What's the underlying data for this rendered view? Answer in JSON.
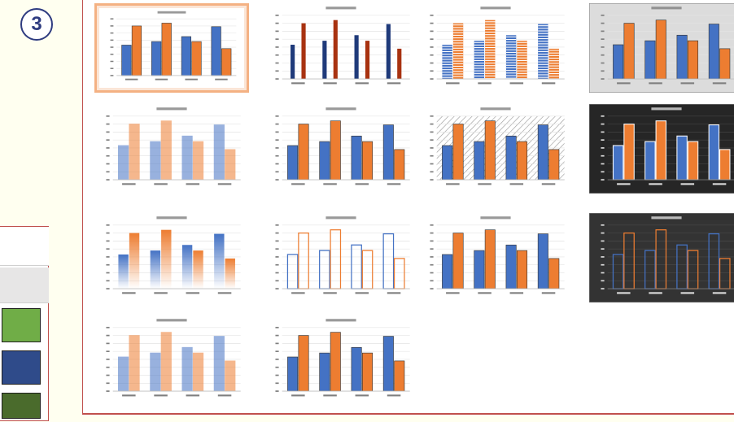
{
  "badge": {
    "number": "3"
  },
  "colors": {
    "blue": "#4472c4",
    "orange": "#ed7d31",
    "accent_red": "#c0504d",
    "selected_border": "#f4b183",
    "badge_color": "#2e3b80"
  },
  "left_panel": {
    "swatches": [
      {
        "color": "#ffffff",
        "name": "white"
      },
      {
        "color": "#e7e6e6",
        "name": "light-gray"
      },
      {
        "color": "#70ad47",
        "name": "green"
      },
      {
        "color": "#2f4b8a",
        "name": "dark-blue"
      },
      {
        "color": "#4a6b2c",
        "name": "dark-green"
      }
    ]
  },
  "gallery": {
    "styles": [
      {
        "id": 1,
        "style": "plain",
        "selected": true
      },
      {
        "id": 2,
        "style": "dark-thin",
        "selected": false
      },
      {
        "id": 3,
        "style": "striped",
        "selected": false
      },
      {
        "id": 4,
        "style": "gray-bg",
        "selected": false
      },
      {
        "id": 5,
        "style": "light",
        "selected": false
      },
      {
        "id": 6,
        "style": "plain",
        "selected": false
      },
      {
        "id": 7,
        "style": "hatched-bg",
        "selected": false
      },
      {
        "id": 8,
        "style": "black-bg",
        "selected": false
      },
      {
        "id": 9,
        "style": "gradient",
        "selected": false
      },
      {
        "id": 10,
        "style": "outline",
        "selected": false
      },
      {
        "id": 11,
        "style": "plain",
        "selected": false
      },
      {
        "id": 12,
        "style": "dark-outline",
        "selected": false
      },
      {
        "id": 13,
        "style": "light",
        "selected": false
      },
      {
        "id": 14,
        "style": "plain",
        "selected": false
      }
    ]
  },
  "chart_data": {
    "type": "bar",
    "categories": [
      "1",
      "2",
      "3",
      "4"
    ],
    "series": [
      {
        "values": [
          4.3,
          4.8,
          5.5,
          6.9
        ]
      },
      {
        "values": [
          7.0,
          7.4,
          4.8,
          3.8
        ]
      }
    ],
    "ylim": [
      0,
      8
    ]
  }
}
